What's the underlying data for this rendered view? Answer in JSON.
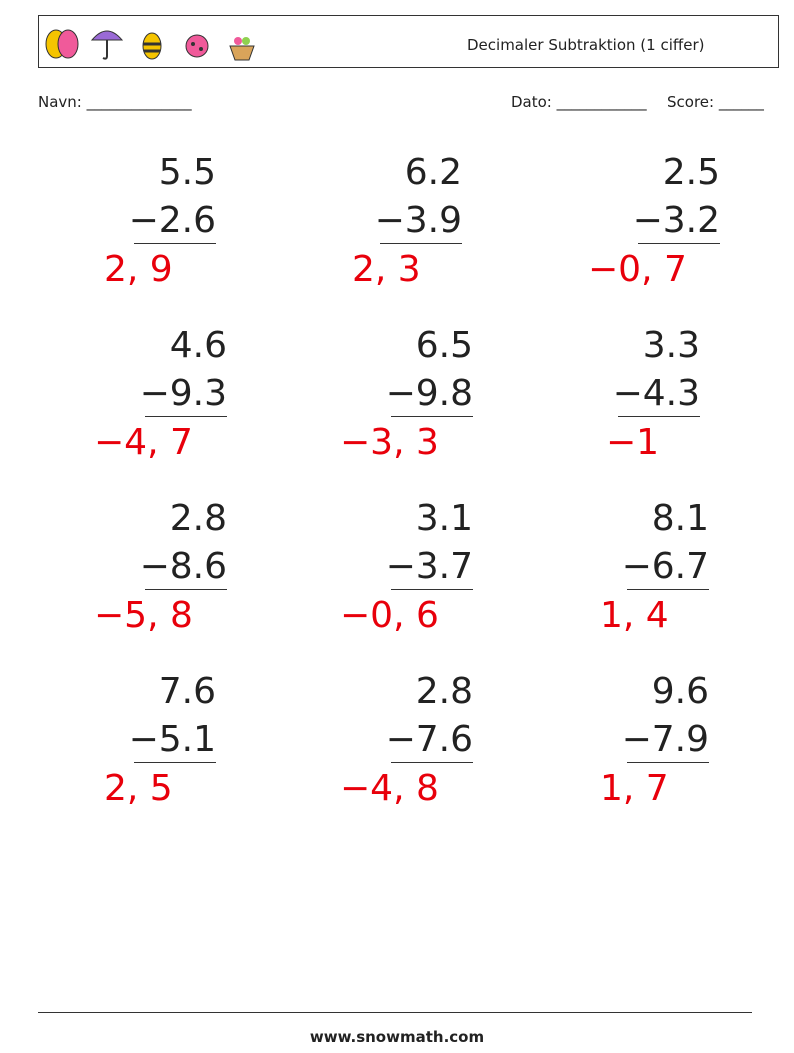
{
  "header": {
    "title": "Decimaler Subtraktion (1 ciffer)"
  },
  "fields": {
    "name": "Navn: ______________",
    "date": "Dato: ____________",
    "score": "Score: ______"
  },
  "problems": [
    {
      "top": "5.5",
      "bottom": "−2.6",
      "answer": "2, 9"
    },
    {
      "top": "6.2",
      "bottom": "−3.9",
      "answer": "2, 3"
    },
    {
      "top": "2.5",
      "bottom": "−3.2",
      "answer": "−0, 7"
    },
    {
      "top": "4.6",
      "bottom": "−9.3",
      "answer": "−4, 7"
    },
    {
      "top": "6.5",
      "bottom": "−9.8",
      "answer": "−3, 3"
    },
    {
      "top": "3.3",
      "bottom": "−4.3",
      "answer": "−1"
    },
    {
      "top": "2.8",
      "bottom": "−8.6",
      "answer": "−5, 8"
    },
    {
      "top": "3.1",
      "bottom": "−3.7",
      "answer": "−0, 6"
    },
    {
      "top": "8.1",
      "bottom": "−6.7",
      "answer": "1, 4"
    },
    {
      "top": "7.6",
      "bottom": "−5.1",
      "answer": "2, 5"
    },
    {
      "top": "2.8",
      "bottom": "−7.6",
      "answer": "−4, 8"
    },
    {
      "top": "9.6",
      "bottom": "−7.9",
      "answer": "1, 7"
    }
  ],
  "footer": {
    "url": "www.snowmath.com"
  }
}
